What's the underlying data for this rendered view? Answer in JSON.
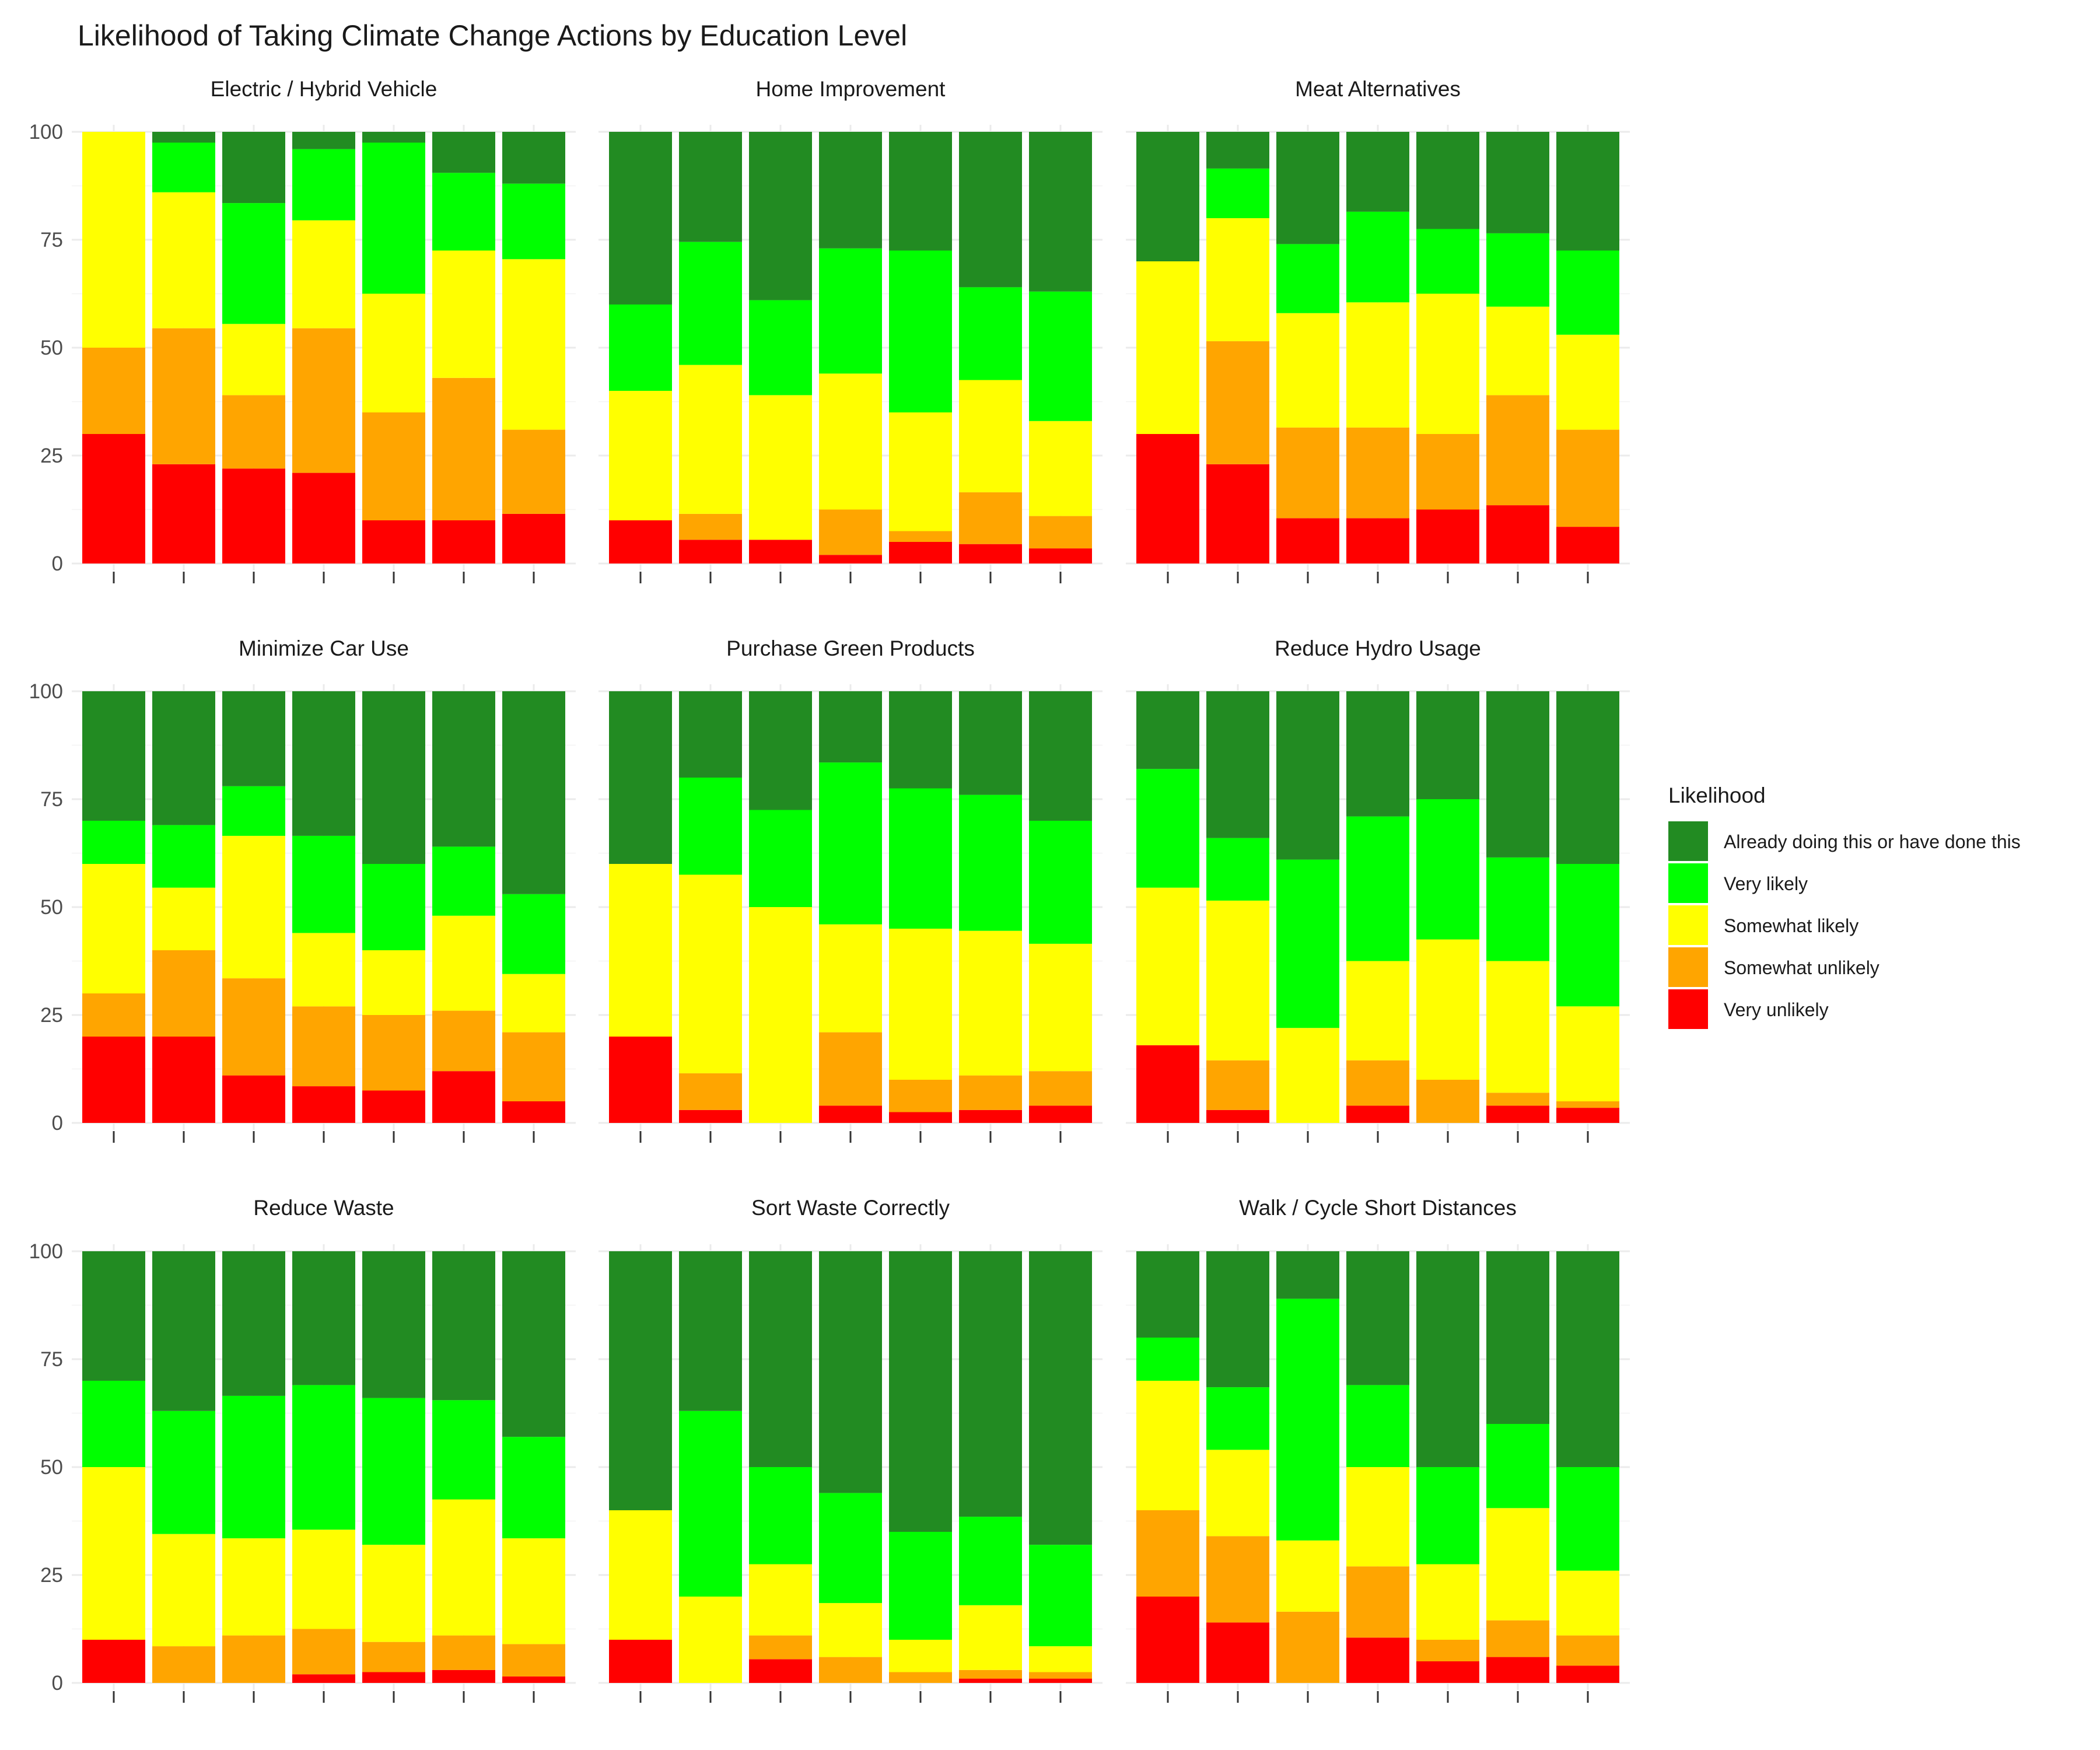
{
  "chart_data": {
    "type": "bar",
    "stacked": true,
    "title": "Likelihood of Taking Climate Change Actions by Education Level",
    "xlabel": "",
    "ylabel": "",
    "ylim": [
      0,
      100
    ],
    "yticks": [
      "0",
      "25",
      "50",
      "75",
      "100"
    ],
    "grid": true,
    "legend_position": "right",
    "legend": {
      "title": "Likelihood",
      "items": [
        {
          "label": "Already doing this or have done this",
          "color": "#228B22"
        },
        {
          "label": "Very likely",
          "color": "#00FF00"
        },
        {
          "label": "Somewhat likely",
          "color": "#FFFF00"
        },
        {
          "label": "Somewhat unlikely",
          "color": "#FFA500"
        },
        {
          "label": "Very unlikely",
          "color": "#FF0000"
        }
      ]
    },
    "stack_order": [
      "Very unlikely",
      "Somewhat unlikely",
      "Somewhat likely",
      "Very likely",
      "Already doing this or have done this"
    ],
    "facets": [
      {
        "name": "Electric / Hybrid Vehicle",
        "bars": [
          {
            "Very unlikely": 30,
            "Somewhat unlikely": 20,
            "Somewhat likely": 50,
            "Very likely": 0,
            "Already doing this or have done this": 0
          },
          {
            "Very unlikely": 23,
            "Somewhat unlikely": 31.5,
            "Somewhat likely": 31.5,
            "Very likely": 11.5,
            "Already doing this or have done this": 2.5
          },
          {
            "Very unlikely": 22,
            "Somewhat unlikely": 17,
            "Somewhat likely": 16.5,
            "Very likely": 28,
            "Already doing this or have done this": 16.5
          },
          {
            "Very unlikely": 21,
            "Somewhat unlikely": 33.5,
            "Somewhat likely": 25,
            "Very likely": 16.5,
            "Already doing this or have done this": 4
          },
          {
            "Very unlikely": 10,
            "Somewhat unlikely": 25,
            "Somewhat likely": 27.5,
            "Very likely": 35,
            "Already doing this or have done this": 2.5
          },
          {
            "Very unlikely": 10,
            "Somewhat unlikely": 33,
            "Somewhat likely": 29.5,
            "Very likely": 18,
            "Already doing this or have done this": 9.5
          },
          {
            "Very unlikely": 11.5,
            "Somewhat unlikely": 19.5,
            "Somewhat likely": 39.5,
            "Very likely": 17.5,
            "Already doing this or have done this": 12
          }
        ]
      },
      {
        "name": "Home Improvement",
        "bars": [
          {
            "Very unlikely": 10,
            "Somewhat unlikely": 0,
            "Somewhat likely": 30,
            "Very likely": 20,
            "Already doing this or have done this": 40
          },
          {
            "Very unlikely": 5.5,
            "Somewhat unlikely": 6,
            "Somewhat likely": 34.5,
            "Very likely": 28.5,
            "Already doing this or have done this": 25.5
          },
          {
            "Very unlikely": 5.5,
            "Somewhat unlikely": 0,
            "Somewhat likely": 33.5,
            "Very likely": 22,
            "Already doing this or have done this": 39
          },
          {
            "Very unlikely": 2,
            "Somewhat unlikely": 10.5,
            "Somewhat likely": 31.5,
            "Very likely": 29,
            "Already doing this or have done this": 27
          },
          {
            "Very unlikely": 5,
            "Somewhat unlikely": 2.5,
            "Somewhat likely": 27.5,
            "Very likely": 37.5,
            "Already doing this or have done this": 27.5
          },
          {
            "Very unlikely": 4.5,
            "Somewhat unlikely": 12,
            "Somewhat likely": 26,
            "Very likely": 21.5,
            "Already doing this or have done this": 36
          },
          {
            "Very unlikely": 3.5,
            "Somewhat unlikely": 7.5,
            "Somewhat likely": 22,
            "Very likely": 30,
            "Already doing this or have done this": 37
          }
        ]
      },
      {
        "name": "Meat Alternatives",
        "bars": [
          {
            "Very unlikely": 30,
            "Somewhat unlikely": 0,
            "Somewhat likely": 40,
            "Very likely": 0,
            "Already doing this or have done this": 30
          },
          {
            "Very unlikely": 23,
            "Somewhat unlikely": 28.5,
            "Somewhat likely": 28.5,
            "Very likely": 11.5,
            "Already doing this or have done this": 8.5
          },
          {
            "Very unlikely": 10.5,
            "Somewhat unlikely": 21,
            "Somewhat likely": 26.5,
            "Very likely": 16,
            "Already doing this or have done this": 26
          },
          {
            "Very unlikely": 10.5,
            "Somewhat unlikely": 21,
            "Somewhat likely": 29,
            "Very likely": 21,
            "Already doing this or have done this": 18.5
          },
          {
            "Very unlikely": 12.5,
            "Somewhat unlikely": 17.5,
            "Somewhat likely": 32.5,
            "Very likely": 15,
            "Already doing this or have done this": 22.5
          },
          {
            "Very unlikely": 13.5,
            "Somewhat unlikely": 25.5,
            "Somewhat likely": 20.5,
            "Very likely": 17,
            "Already doing this or have done this": 23.5
          },
          {
            "Very unlikely": 8.5,
            "Somewhat unlikely": 22.5,
            "Somewhat likely": 22,
            "Very likely": 19.5,
            "Already doing this or have done this": 27.5
          }
        ]
      },
      {
        "name": "Minimize Car Use",
        "bars": [
          {
            "Very unlikely": 20,
            "Somewhat unlikely": 10,
            "Somewhat likely": 30,
            "Very likely": 10,
            "Already doing this or have done this": 30
          },
          {
            "Very unlikely": 20,
            "Somewhat unlikely": 20,
            "Somewhat likely": 14.5,
            "Very likely": 14.5,
            "Already doing this or have done this": 31
          },
          {
            "Very unlikely": 11,
            "Somewhat unlikely": 22.5,
            "Somewhat likely": 33,
            "Very likely": 11.5,
            "Already doing this or have done this": 22
          },
          {
            "Very unlikely": 8.5,
            "Somewhat unlikely": 18.5,
            "Somewhat likely": 17,
            "Very likely": 22.5,
            "Already doing this or have done this": 33.5
          },
          {
            "Very unlikely": 7.5,
            "Somewhat unlikely": 17.5,
            "Somewhat likely": 15,
            "Very likely": 20,
            "Already doing this or have done this": 40
          },
          {
            "Very unlikely": 12,
            "Somewhat unlikely": 14,
            "Somewhat likely": 22,
            "Very likely": 16,
            "Already doing this or have done this": 36
          },
          {
            "Very unlikely": 5,
            "Somewhat unlikely": 16,
            "Somewhat likely": 13.5,
            "Very likely": 18.5,
            "Already doing this or have done this": 47
          }
        ]
      },
      {
        "name": "Purchase Green Products",
        "bars": [
          {
            "Very unlikely": 20,
            "Somewhat unlikely": 0,
            "Somewhat likely": 40,
            "Very likely": 0,
            "Already doing this or have done this": 40
          },
          {
            "Very unlikely": 3,
            "Somewhat unlikely": 8.5,
            "Somewhat likely": 46,
            "Very likely": 22.5,
            "Already doing this or have done this": 20
          },
          {
            "Very unlikely": 0,
            "Somewhat unlikely": 0,
            "Somewhat likely": 50,
            "Very likely": 22.5,
            "Already doing this or have done this": 27.5
          },
          {
            "Very unlikely": 4,
            "Somewhat unlikely": 17,
            "Somewhat likely": 25,
            "Very likely": 37.5,
            "Already doing this or have done this": 16.5
          },
          {
            "Very unlikely": 2.5,
            "Somewhat unlikely": 7.5,
            "Somewhat likely": 35,
            "Very likely": 32.5,
            "Already doing this or have done this": 22.5
          },
          {
            "Very unlikely": 3,
            "Somewhat unlikely": 8,
            "Somewhat likely": 33.5,
            "Very likely": 31.5,
            "Already doing this or have done this": 24
          },
          {
            "Very unlikely": 4,
            "Somewhat unlikely": 8,
            "Somewhat likely": 29.5,
            "Very likely": 28.5,
            "Already doing this or have done this": 30
          }
        ]
      },
      {
        "name": "Reduce Hydro Usage",
        "bars": [
          {
            "Very unlikely": 18,
            "Somewhat unlikely": 0,
            "Somewhat likely": 36.5,
            "Very likely": 27.5,
            "Already doing this or have done this": 18
          },
          {
            "Very unlikely": 3,
            "Somewhat unlikely": 11.5,
            "Somewhat likely": 37,
            "Very likely": 14.5,
            "Already doing this or have done this": 34
          },
          {
            "Very unlikely": 0,
            "Somewhat unlikely": 0,
            "Somewhat likely": 22,
            "Very likely": 39,
            "Already doing this or have done this": 39
          },
          {
            "Very unlikely": 4,
            "Somewhat unlikely": 10.5,
            "Somewhat likely": 23,
            "Very likely": 33.5,
            "Already doing this or have done this": 29
          },
          {
            "Very unlikely": 0,
            "Somewhat unlikely": 10,
            "Somewhat likely": 32.5,
            "Very likely": 32.5,
            "Already doing this or have done this": 25
          },
          {
            "Very unlikely": 4,
            "Somewhat unlikely": 3,
            "Somewhat likely": 30.5,
            "Very likely": 24,
            "Already doing this or have done this": 38.5
          },
          {
            "Very unlikely": 3.5,
            "Somewhat unlikely": 1.5,
            "Somewhat likely": 22,
            "Very likely": 33,
            "Already doing this or have done this": 40
          }
        ]
      },
      {
        "name": "Reduce Waste",
        "bars": [
          {
            "Very unlikely": 10,
            "Somewhat unlikely": 0,
            "Somewhat likely": 40,
            "Very likely": 20,
            "Already doing this or have done this": 30
          },
          {
            "Very unlikely": 0,
            "Somewhat unlikely": 8.5,
            "Somewhat likely": 26,
            "Very likely": 28.5,
            "Already doing this or have done this": 37
          },
          {
            "Very unlikely": 0,
            "Somewhat unlikely": 11,
            "Somewhat likely": 22.5,
            "Very likely": 33,
            "Already doing this or have done this": 33.5
          },
          {
            "Very unlikely": 2,
            "Somewhat unlikely": 10.5,
            "Somewhat likely": 23,
            "Very likely": 33.5,
            "Already doing this or have done this": 31
          },
          {
            "Very unlikely": 2.5,
            "Somewhat unlikely": 7,
            "Somewhat likely": 22.5,
            "Very likely": 34,
            "Already doing this or have done this": 34
          },
          {
            "Very unlikely": 3,
            "Somewhat unlikely": 8,
            "Somewhat likely": 31.5,
            "Very likely": 23,
            "Already doing this or have done this": 34.5
          },
          {
            "Very unlikely": 1.5,
            "Somewhat unlikely": 7.5,
            "Somewhat likely": 24.5,
            "Very likely": 23.5,
            "Already doing this or have done this": 43
          }
        ]
      },
      {
        "name": "Sort Waste Correctly",
        "bars": [
          {
            "Very unlikely": 10,
            "Somewhat unlikely": 0,
            "Somewhat likely": 30,
            "Very likely": 0,
            "Already doing this or have done this": 60
          },
          {
            "Very unlikely": 0,
            "Somewhat unlikely": 0,
            "Somewhat likely": 20,
            "Very likely": 43,
            "Already doing this or have done this": 37
          },
          {
            "Very unlikely": 5.5,
            "Somewhat unlikely": 5.5,
            "Somewhat likely": 16.5,
            "Very likely": 22.5,
            "Already doing this or have done this": 50
          },
          {
            "Very unlikely": 0,
            "Somewhat unlikely": 6,
            "Somewhat likely": 12.5,
            "Very likely": 25.5,
            "Already doing this or have done this": 56
          },
          {
            "Very unlikely": 0,
            "Somewhat unlikely": 2.5,
            "Somewhat likely": 7.5,
            "Very likely": 25,
            "Already doing this or have done this": 65
          },
          {
            "Very unlikely": 1,
            "Somewhat unlikely": 2,
            "Somewhat likely": 15,
            "Very likely": 20.5,
            "Already doing this or have done this": 61.5
          },
          {
            "Very unlikely": 1,
            "Somewhat unlikely": 1.5,
            "Somewhat likely": 6,
            "Very likely": 23.5,
            "Already doing this or have done this": 68
          }
        ]
      },
      {
        "name": "Walk / Cycle Short Distances",
        "bars": [
          {
            "Very unlikely": 20,
            "Somewhat unlikely": 20,
            "Somewhat likely": 30,
            "Very likely": 10,
            "Already doing this or have done this": 20
          },
          {
            "Very unlikely": 14,
            "Somewhat unlikely": 20,
            "Somewhat likely": 20,
            "Very likely": 14.5,
            "Already doing this or have done this": 31.5
          },
          {
            "Very unlikely": 0,
            "Somewhat unlikely": 16.5,
            "Somewhat likely": 16.5,
            "Very likely": 56,
            "Already doing this or have done this": 11
          },
          {
            "Very unlikely": 10.5,
            "Somewhat unlikely": 16.5,
            "Somewhat likely": 23,
            "Very likely": 19,
            "Already doing this or have done this": 31
          },
          {
            "Very unlikely": 5,
            "Somewhat unlikely": 5,
            "Somewhat likely": 17.5,
            "Very likely": 22.5,
            "Already doing this or have done this": 50
          },
          {
            "Very unlikely": 6,
            "Somewhat unlikely": 8.5,
            "Somewhat likely": 26,
            "Very likely": 19.5,
            "Already doing this or have done this": 40
          },
          {
            "Very unlikely": 4,
            "Somewhat unlikely": 7,
            "Somewhat likely": 15,
            "Very likely": 24,
            "Already doing this or have done this": 50
          }
        ]
      }
    ]
  }
}
